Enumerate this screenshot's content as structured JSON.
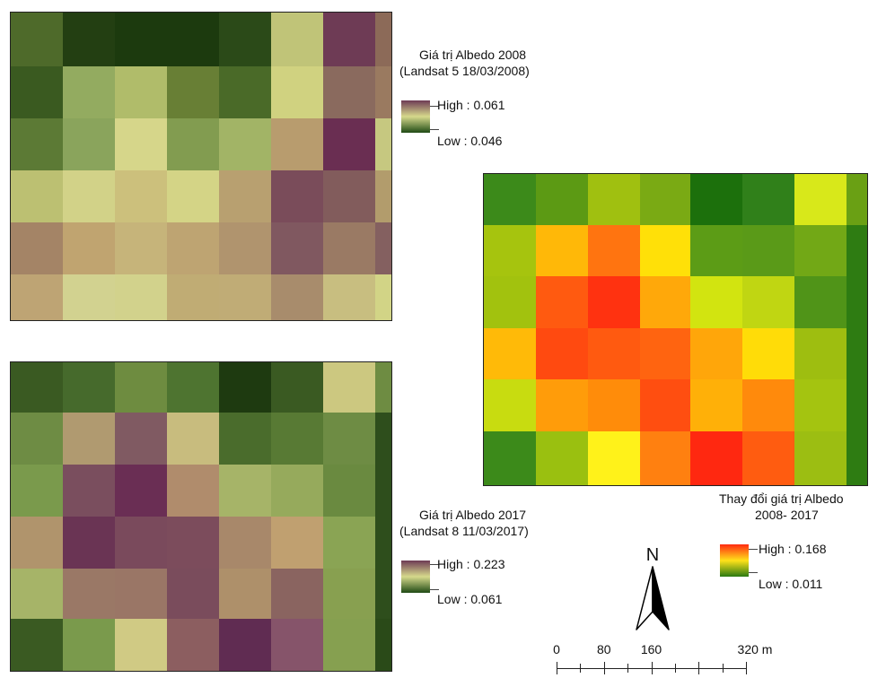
{
  "maps": {
    "albedo_2008": {
      "legend_title_line1": "Giá trị Albedo 2008",
      "legend_title_line2": "(Landsat 5 18/03/2008)",
      "high_label": "High : 0.061",
      "low_label": "Low : 0.046",
      "ramp": [
        "#6e3b55",
        "#d6d98c",
        "#1f4a14"
      ],
      "cells": [
        [
          "#4e6a2a",
          "#233f12",
          "#1c3a0e",
          "#1c3a0e",
          "#2b4a18",
          "#c0c478",
          "#6e3b55",
          "#8c6a58"
        ],
        [
          "#3a5a20",
          "#93ab60",
          "#b0bc6a",
          "#687f35",
          "#4a6a28",
          "#d0d280",
          "#8a6a5e",
          "#9a7a60"
        ],
        [
          "#5c7a35",
          "#8aa45c",
          "#d6d68a",
          "#829c50",
          "#a2b466",
          "#b89c6e",
          "#6a2e52",
          "#c6c880"
        ],
        [
          "#bcc072",
          "#d2d288",
          "#ccc07c",
          "#d4d486",
          "#b8a070",
          "#7a4c5a",
          "#825c5c",
          "#b29c6c"
        ],
        [
          "#a48466",
          "#c0a470",
          "#c6b47a",
          "#bea472",
          "#b0946e",
          "#805860",
          "#9a7a64",
          "#846060"
        ],
        [
          "#bea474",
          "#d2d290",
          "#d2d28c",
          "#c0ac74",
          "#c0ac76",
          "#a88c6c",
          "#c8be80",
          "#d2d486"
        ]
      ]
    },
    "albedo_2017": {
      "legend_title_line1": "Giá trị Albedo 2017",
      "legend_title_line2": "(Landsat 8 11/03/2017)",
      "high_label": "High : 0.223",
      "low_label": "Low : 0.061",
      "ramp": [
        "#6e3b55",
        "#d6d98c",
        "#1f4a14"
      ],
      "cells": [
        [
          "#3a5a22",
          "#466a2c",
          "#6e8c40",
          "#4e7430",
          "#1e3a10",
          "#3a5a22",
          "#ccc880",
          "#6e8c42"
        ],
        [
          "#6e8c44",
          "#b09a70",
          "#805a62",
          "#c8bc7e",
          "#4a6c2c",
          "#587a34",
          "#6e8c44",
          "#2e4e1c"
        ],
        [
          "#7a9a4c",
          "#7a4e5e",
          "#6a2e54",
          "#b08c6c",
          "#a6b468",
          "#96aa5c",
          "#6a8a40",
          "#2e4e1c"
        ],
        [
          "#b0946c",
          "#6a3454",
          "#7a4a5c",
          "#7c4c5c",
          "#a8886a",
          "#c0a070",
          "#8aa454",
          "#2e4e1c"
        ],
        [
          "#a6b468",
          "#9a7866",
          "#9a7666",
          "#7a4c5c",
          "#ae906a",
          "#8a6460",
          "#88a050",
          "#2e4e1c"
        ],
        [
          "#3a5a22",
          "#7a9a4c",
          "#d0ca84",
          "#8c5e60",
          "#602c52",
          "#86546a",
          "#86a050",
          "#2a4a18"
        ]
      ]
    },
    "albedo_change": {
      "legend_title_line1": "Thay đổi giá trị Albedo",
      "legend_title_line2": "2008- 2017",
      "high_label": "High : 0.168",
      "low_label": "Low : 0.011",
      "ramp": [
        "#ff2a10",
        "#ffe21a",
        "#2a7a12"
      ],
      "cells": [
        [
          "#3c8a1a",
          "#5c9a14",
          "#a0c010",
          "#7aaa14",
          "#1c700c",
          "#30801a",
          "#d8e81a",
          "#6aa014"
        ],
        [
          "#a6c40e",
          "#ffb808",
          "#ff7410",
          "#ffe008",
          "#5c9c16",
          "#5a9a18",
          "#72a816",
          "#2e7c12"
        ],
        [
          "#a2c20e",
          "#ff5a10",
          "#ff3210",
          "#ffa80a",
          "#d2e410",
          "#c0d612",
          "#509418",
          "#2e7c12"
        ],
        [
          "#ffba08",
          "#ff4a10",
          "#ff5a10",
          "#ff6410",
          "#ffa60a",
          "#ffdc08",
          "#9ebe10",
          "#2e7c12"
        ],
        [
          "#c8dc10",
          "#ff9c0a",
          "#ff8c0a",
          "#ff4e10",
          "#ffb008",
          "#ff8a0c",
          "#a4c410",
          "#2e7c12"
        ],
        [
          "#3c8a1a",
          "#9ac010",
          "#fff21a",
          "#ff8010",
          "#ff2810",
          "#ff5c10",
          "#9cbe12",
          "#2e7c12"
        ]
      ]
    }
  },
  "north_arrow": {
    "label": "N"
  },
  "scalebar": {
    "labels": [
      "0",
      "80",
      "160",
      "320 m"
    ],
    "values": [
      0,
      80,
      160,
      320
    ]
  }
}
